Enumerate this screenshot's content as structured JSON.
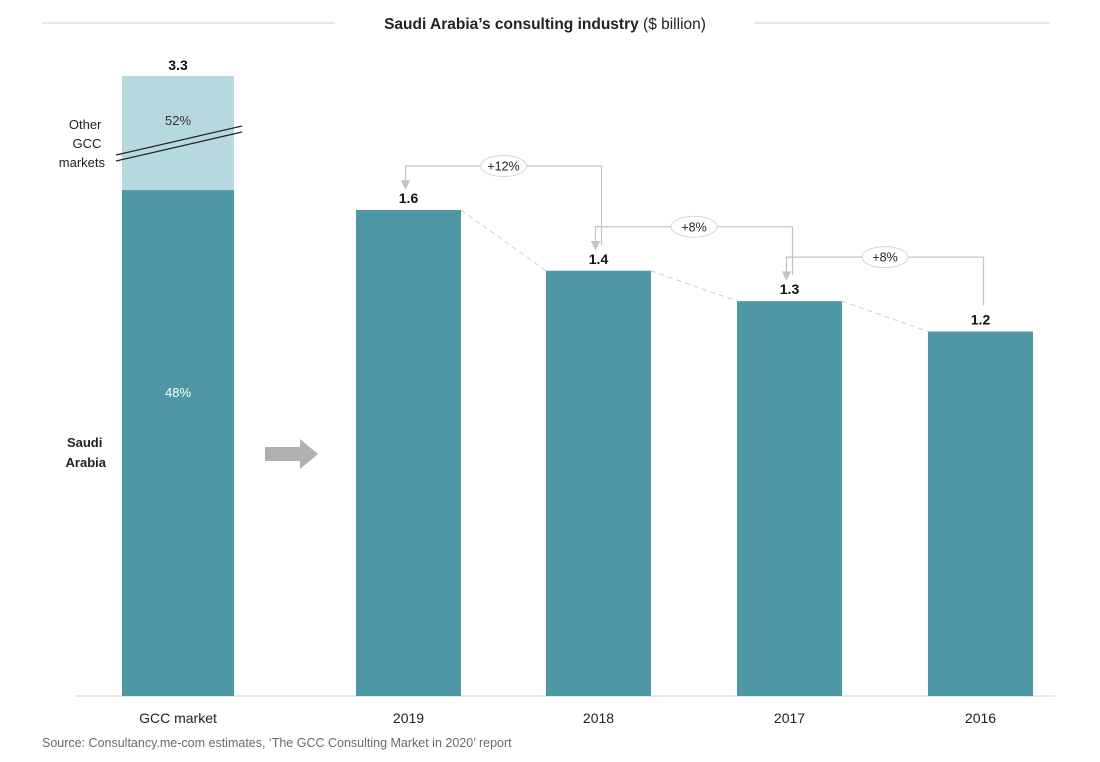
{
  "title_bold": "Saudi Arabia’s consulting industry",
  "title_unit": "($ billion)",
  "chart_data": [
    {
      "type": "bar",
      "stacked": true,
      "categories": [
        "GCC market"
      ],
      "total_label": "3.3",
      "segments": [
        {
          "label_line1": "Saudi",
          "label_line2": "Arabia",
          "share": "48%",
          "share_value": 48,
          "color": "#4e97a4"
        },
        {
          "label_line1": "Other",
          "label_line2": "GCC",
          "label_line3": "markets",
          "share": "52%",
          "share_value": 52,
          "color": "#b5d9de"
        }
      ]
    },
    {
      "type": "bar",
      "categories": [
        "2019",
        "2018",
        "2017",
        "2016"
      ],
      "values": [
        1.6,
        1.4,
        1.3,
        1.2
      ],
      "value_labels": [
        "1.6",
        "1.4",
        "1.3",
        "1.2"
      ],
      "growth_labels": [
        "+12%",
        "+8%",
        "+8%"
      ],
      "color": "#4e97a4"
    }
  ],
  "source": "Source: Consultancy.me-com estimates, ‘The GCC Consulting Market in 2020’ report"
}
